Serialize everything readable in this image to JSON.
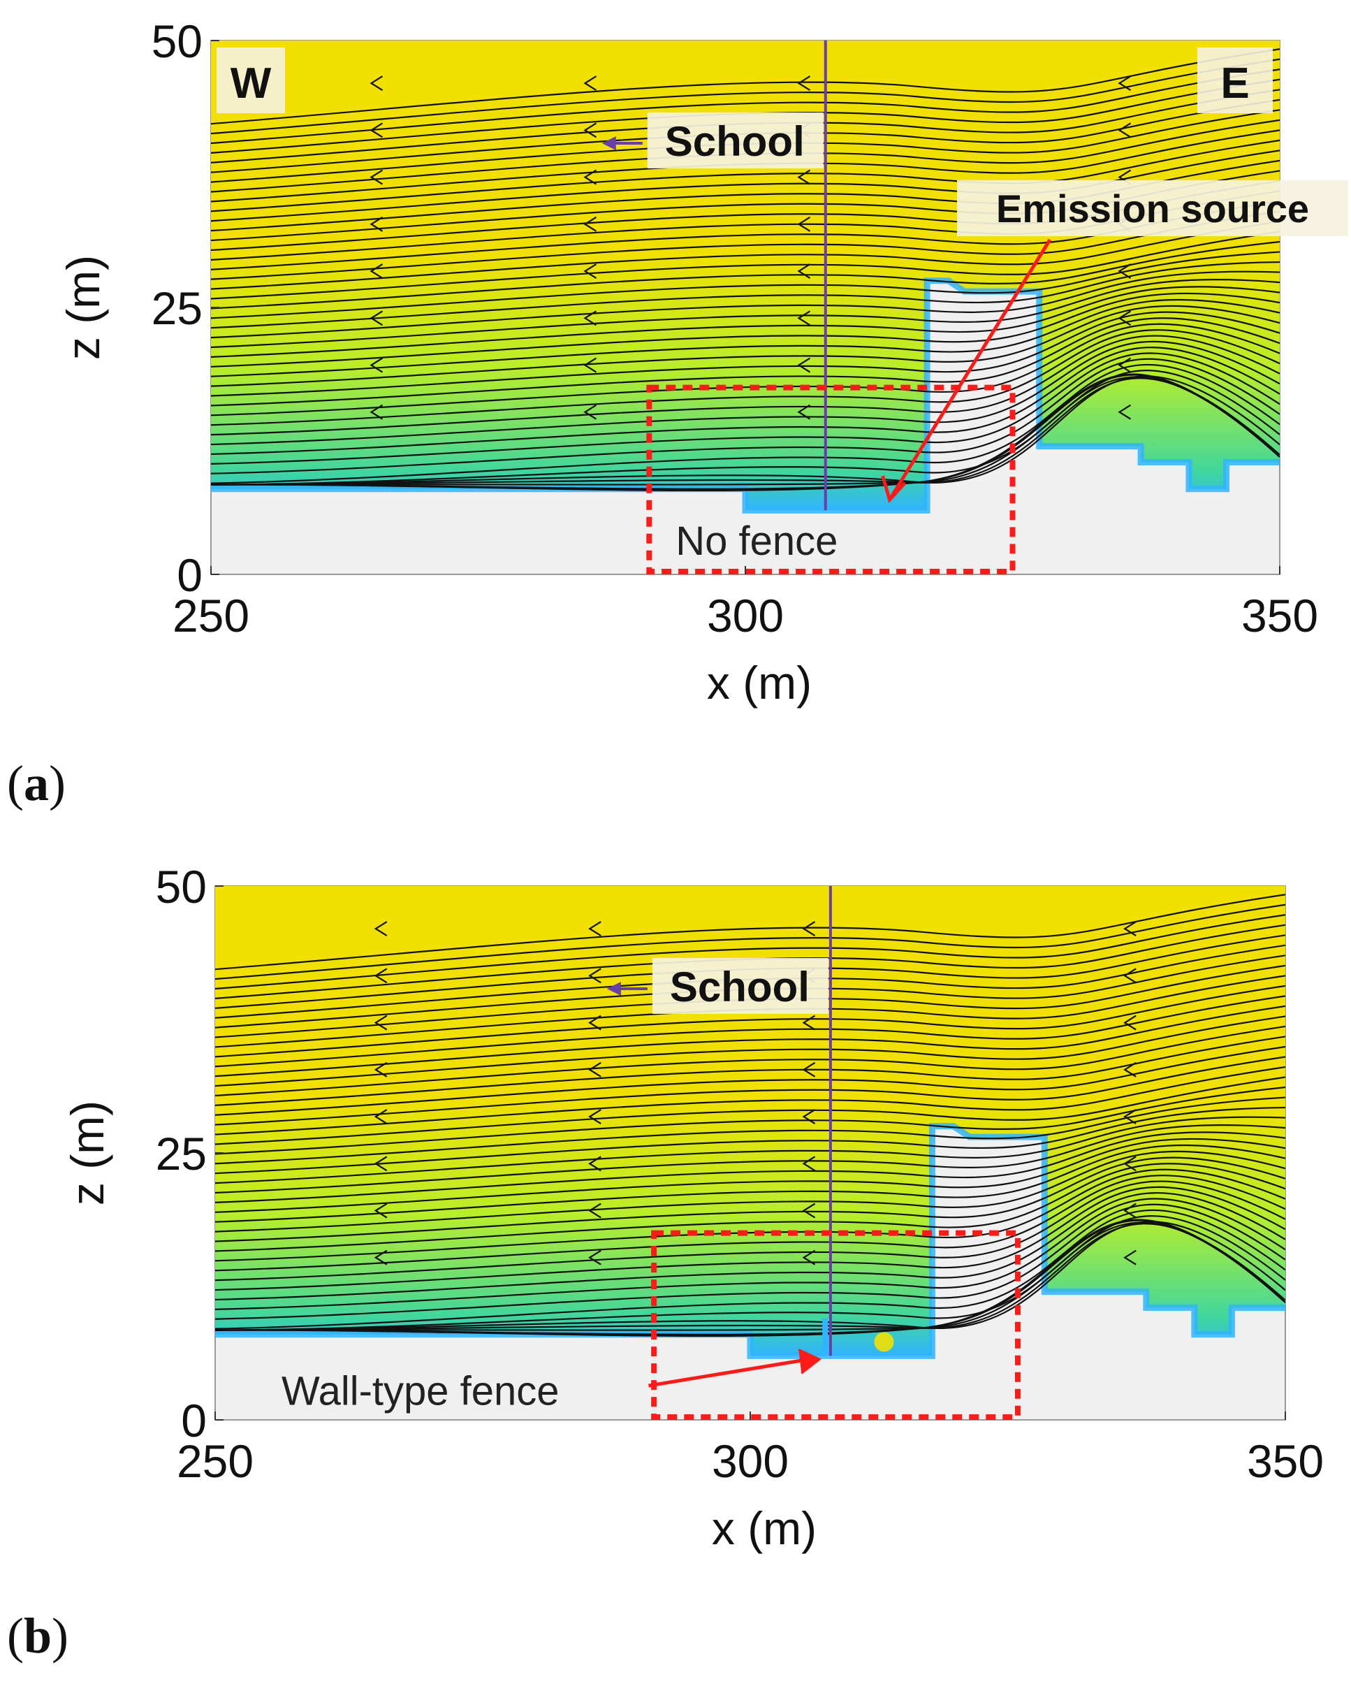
{
  "chart_data": [
    {
      "type": "streamline",
      "panel_label": "(a)",
      "xlabel": "x (m)",
      "ylabel": "z (m)",
      "xlim": [
        250,
        350
      ],
      "ylim": [
        0,
        50
      ],
      "xticks": [
        250,
        300,
        350
      ],
      "yticks": [
        0,
        25,
        50
      ],
      "corner_labels": {
        "left": "W",
        "right": "E"
      },
      "school_label": "School",
      "school_x": 307.5,
      "emission_label": "Emission source",
      "region_label": "No fence",
      "highlight_box": {
        "x0": 291,
        "x1": 325,
        "z0": 0,
        "z1": 17.5
      },
      "fence": false,
      "colors": {
        "high": "#f2e100",
        "mid": "#b8ee2a",
        "low": "#3fd6a0",
        "wall": "#2fb4ff",
        "ground": "#f0f0f0",
        "school_line": "#6a3ea8",
        "annotation": "#ff1a1a"
      }
    },
    {
      "type": "streamline",
      "panel_label": "(b)",
      "xlabel": "x (m)",
      "ylabel": "z (m)",
      "xlim": [
        250,
        350
      ],
      "ylim": [
        0,
        50
      ],
      "xticks": [
        250,
        300,
        350
      ],
      "yticks": [
        0,
        25,
        50
      ],
      "school_label": "School",
      "school_x": 307.5,
      "region_label": "Wall-type fence",
      "highlight_box": {
        "x0": 291,
        "x1": 325,
        "z0": 0,
        "z1": 17.5
      },
      "fence": true,
      "colors": {
        "high": "#f2e100",
        "mid": "#b8ee2a",
        "low": "#3fd6a0",
        "wall": "#2fb4ff",
        "ground": "#f0f0f0",
        "school_line": "#6a3ea8",
        "annotation": "#ff1a1a"
      }
    }
  ]
}
